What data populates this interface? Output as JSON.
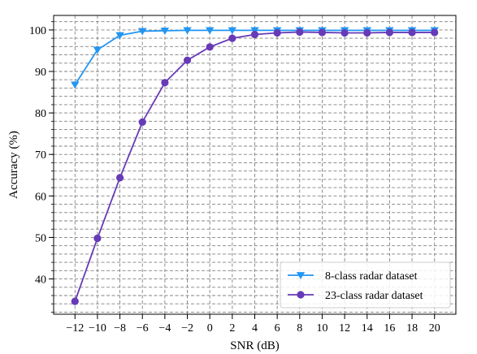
{
  "chart_data": {
    "type": "line",
    "xlabel": "SNR (dB)",
    "ylabel": "Accuracy (%)",
    "xlim": [
      -13.9,
      21.9
    ],
    "ylim": [
      31.5,
      103.5
    ],
    "x": [
      -12,
      -10,
      -8,
      -6,
      -4,
      -2,
      0,
      2,
      4,
      6,
      8,
      10,
      12,
      14,
      16,
      18,
      20
    ],
    "x_ticks": [
      -12,
      -10,
      -8,
      -6,
      -4,
      -2,
      0,
      2,
      4,
      6,
      8,
      10,
      12,
      14,
      16,
      18,
      20
    ],
    "x_tick_labels": [
      "−12",
      "−10",
      "−8",
      "−6",
      "−4",
      "−2",
      "0",
      "2",
      "4",
      "6",
      "8",
      "10",
      "12",
      "14",
      "16",
      "18",
      "20"
    ],
    "y_ticks": [
      40,
      50,
      60,
      70,
      80,
      90,
      100
    ],
    "y_tick_labels": [
      "40",
      "50",
      "60",
      "70",
      "80",
      "90",
      "100"
    ],
    "y_minor_step": 2,
    "grid": true,
    "legend_position": "lower-right",
    "series": [
      {
        "name": "8-class radar dataset",
        "color": "#2196F3",
        "marker": "triangle-down",
        "values": [
          86.8,
          95.2,
          98.7,
          99.7,
          99.8,
          99.9,
          99.9,
          99.9,
          99.9,
          99.9,
          99.9,
          99.9,
          99.9,
          99.9,
          99.9,
          99.9,
          99.9
        ]
      },
      {
        "name": "23-class radar dataset",
        "color": "#673AB7",
        "marker": "circle",
        "values": [
          34.6,
          49.8,
          64.4,
          77.8,
          87.3,
          92.7,
          95.9,
          98.0,
          98.9,
          99.3,
          99.5,
          99.4,
          99.3,
          99.3,
          99.4,
          99.4,
          99.4
        ]
      }
    ]
  }
}
